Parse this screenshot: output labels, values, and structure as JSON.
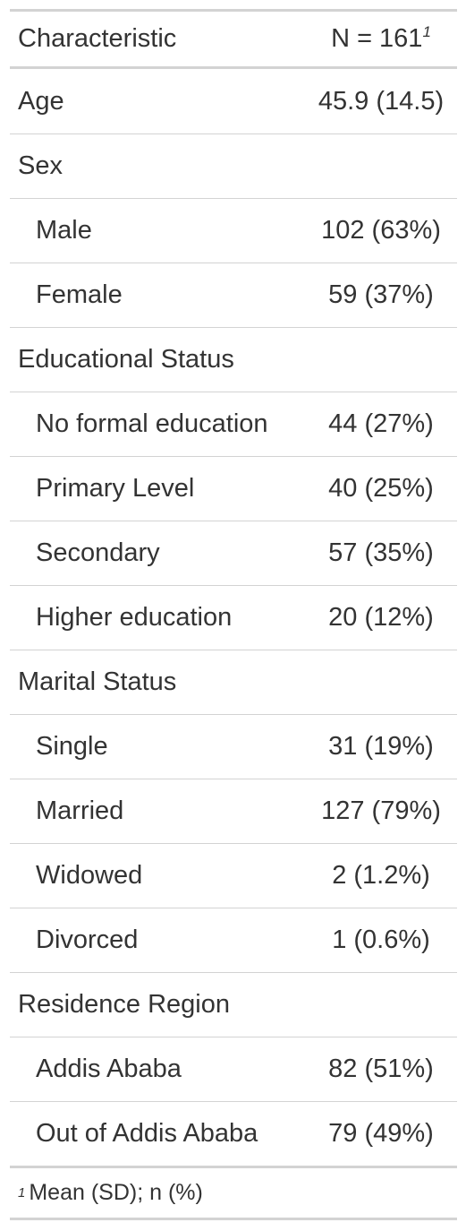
{
  "header": {
    "characteristic": "Characteristic",
    "n_label": "N = 161",
    "n_footnote_mark": "1"
  },
  "rows": [
    {
      "label": "Age",
      "value": "45.9 (14.5)",
      "level": false
    },
    {
      "label": "Sex",
      "value": "",
      "level": false
    },
    {
      "label": "Male",
      "value": "102 (63%)",
      "level": true
    },
    {
      "label": "Female",
      "value": "59 (37%)",
      "level": true
    },
    {
      "label": "Educational Status",
      "value": "",
      "level": false
    },
    {
      "label": "No formal education",
      "value": "44 (27%)",
      "level": true
    },
    {
      "label": "Primary Level",
      "value": "40 (25%)",
      "level": true
    },
    {
      "label": "Secondary",
      "value": "57 (35%)",
      "level": true
    },
    {
      "label": "Higher education",
      "value": "20 (12%)",
      "level": true
    },
    {
      "label": "Marital Status",
      "value": "",
      "level": false
    },
    {
      "label": "Single",
      "value": "31 (19%)",
      "level": true
    },
    {
      "label": "Married",
      "value": "127 (79%)",
      "level": true
    },
    {
      "label": "Widowed",
      "value": "2 (1.2%)",
      "level": true
    },
    {
      "label": "Divorced",
      "value": "1 (0.6%)",
      "level": true
    },
    {
      "label": "Residence Region",
      "value": "",
      "level": false
    },
    {
      "label": "Addis Ababa",
      "value": "82 (51%)",
      "level": true
    },
    {
      "label": "Out of Addis Ababa",
      "value": "79 (49%)",
      "level": true
    }
  ],
  "footnote": {
    "mark": "1",
    "text": "Mean (SD); n (%)"
  }
}
